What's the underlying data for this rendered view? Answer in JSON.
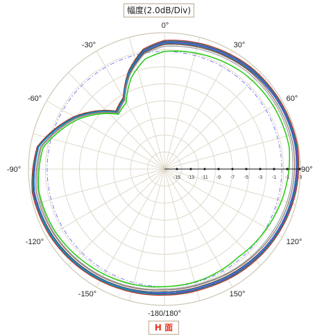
{
  "title": "幅度(2.0dB/Div)",
  "plane_label": "H 面",
  "chart_data": {
    "type": "polar",
    "radial_unit": "dB",
    "radial_range": [
      -17,
      -1
    ],
    "radial_step": 2,
    "radial_tick_labels": [
      "-15",
      "-13",
      "-11",
      "-9",
      "-7",
      "-5",
      "-3",
      "-1",
      "-1",
      "-3"
    ],
    "angle_labels": [
      "0°",
      "30°",
      "60°",
      "90°",
      "120°",
      "150°",
      "-180/180°",
      "-150°",
      "-120°",
      "-90°",
      "-60°",
      "-30°"
    ],
    "angles_deg": [
      0,
      20,
      40,
      60,
      80,
      100,
      120,
      140,
      160,
      180,
      200,
      220,
      240,
      260,
      280,
      300,
      320,
      330,
      340,
      350
    ],
    "series": [
      {
        "color": "#7b1fa2",
        "values": [
          -2.1,
          -1.8,
          -1.5,
          -1.4,
          -1.3,
          -1.5,
          -1.8,
          -2.1,
          -2.4,
          -2.4,
          -2.2,
          -1.9,
          -1.6,
          -1.4,
          -1.9,
          -4.8,
          -8.2,
          -7.4,
          -4.8,
          -2.9
        ]
      },
      {
        "color": "#c62828",
        "values": [
          -1.9,
          -1.6,
          -1.3,
          -1.2,
          -1.1,
          -1.3,
          -1.6,
          -1.9,
          -2.2,
          -2.2,
          -2.0,
          -1.7,
          -1.4,
          -1.2,
          -1.8,
          -4.7,
          -8.1,
          -7.3,
          -4.7,
          -2.7
        ]
      },
      {
        "color": "#424242",
        "values": [
          -2.3,
          -2.0,
          -1.7,
          -1.5,
          -1.4,
          -1.6,
          -1.9,
          -2.3,
          -2.6,
          -2.6,
          -2.3,
          -2.0,
          -1.7,
          -1.5,
          -2.0,
          -4.9,
          -8.3,
          -7.5,
          -5.0,
          -3.1
        ]
      },
      {
        "color": "#00897b",
        "values": [
          -2.0,
          -1.7,
          -1.4,
          -1.3,
          -1.2,
          -1.4,
          -1.7,
          -2.0,
          -2.3,
          -2.3,
          -2.1,
          -1.8,
          -1.5,
          -1.3,
          -1.9,
          -4.8,
          -8.2,
          -7.4,
          -4.8,
          -2.8
        ]
      },
      {
        "color": "#1e88e5",
        "values": [
          -2.2,
          -1.9,
          -1.6,
          -1.5,
          -1.4,
          -1.6,
          -1.9,
          -2.2,
          -2.5,
          -2.5,
          -2.2,
          -1.9,
          -1.6,
          -1.5,
          -2.0,
          -4.9,
          -8.3,
          -7.5,
          -4.9,
          -3.0
        ]
      },
      {
        "color": "#8d6e63",
        "values": [
          -2.4,
          -2.1,
          -1.8,
          -1.7,
          -1.6,
          -1.8,
          -2.1,
          -2.5,
          -2.8,
          -2.8,
          -2.5,
          -2.2,
          -1.9,
          -1.7,
          -2.2,
          -5.0,
          -8.4,
          -7.6,
          -5.1,
          -3.2
        ]
      },
      {
        "color": "#9e9e9e",
        "values": [
          -2.6,
          -2.3,
          -2.0,
          -1.9,
          -1.8,
          -2.0,
          -2.3,
          -2.6,
          -2.9,
          -2.9,
          -2.6,
          -2.3,
          -2.0,
          -1.9,
          -2.3,
          -5.1,
          -8.5,
          -7.7,
          -5.2,
          -3.3
        ]
      },
      {
        "color": "#2ecc1b",
        "values": [
          -3.2,
          -2.8,
          -2.4,
          -2.2,
          -2.1,
          -2.6,
          -3.1,
          -3.5,
          -3.3,
          -3.2,
          -2.9,
          -2.6,
          -2.2,
          -2.0,
          -2.5,
          -5.3,
          -8.6,
          -8.0,
          -5.6,
          -3.9
        ]
      }
    ]
  }
}
